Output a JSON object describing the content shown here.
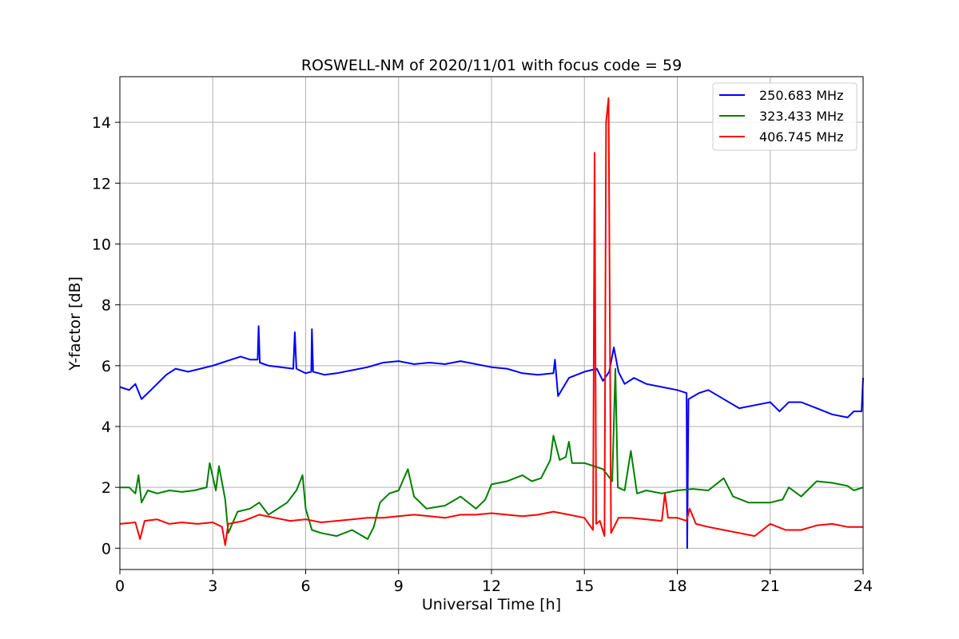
{
  "chart_data": {
    "type": "line",
    "title": "ROSWELL-NM of 2020/11/01 with focus code = 59",
    "xlabel": "Universal Time [h]",
    "ylabel": "Y-factor [dB]",
    "xlim": [
      0,
      24
    ],
    "ylim": [
      -0.7,
      15.5
    ],
    "xticks": [
      0,
      3,
      6,
      9,
      12,
      15,
      18,
      21,
      24
    ],
    "yticks": [
      0,
      2,
      4,
      6,
      8,
      10,
      12,
      14
    ],
    "grid": true,
    "legend_position": "top-right",
    "series": [
      {
        "name": "250.683 MHz",
        "color": "#0000ff",
        "points": [
          [
            0,
            5.3
          ],
          [
            0.3,
            5.2
          ],
          [
            0.5,
            5.4
          ],
          [
            0.7,
            4.9
          ],
          [
            0.9,
            5.1
          ],
          [
            1.0,
            5.2
          ],
          [
            1.3,
            5.5
          ],
          [
            1.5,
            5.7
          ],
          [
            1.8,
            5.9
          ],
          [
            2.2,
            5.8
          ],
          [
            2.6,
            5.9
          ],
          [
            3.0,
            6.0
          ],
          [
            3.3,
            6.1
          ],
          [
            3.6,
            6.2
          ],
          [
            3.9,
            6.3
          ],
          [
            4.2,
            6.2
          ],
          [
            4.45,
            6.2
          ],
          [
            4.48,
            7.3
          ],
          [
            4.52,
            6.1
          ],
          [
            4.8,
            6.0
          ],
          [
            5.2,
            5.95
          ],
          [
            5.6,
            5.9
          ],
          [
            5.65,
            7.1
          ],
          [
            5.7,
            5.9
          ],
          [
            6.0,
            5.75
          ],
          [
            6.18,
            5.8
          ],
          [
            6.2,
            7.2
          ],
          [
            6.24,
            5.8
          ],
          [
            6.6,
            5.7
          ],
          [
            7.0,
            5.75
          ],
          [
            7.5,
            5.85
          ],
          [
            8.0,
            5.95
          ],
          [
            8.5,
            6.1
          ],
          [
            9.0,
            6.15
          ],
          [
            9.5,
            6.05
          ],
          [
            10.0,
            6.1
          ],
          [
            10.5,
            6.05
          ],
          [
            11.0,
            6.15
          ],
          [
            11.5,
            6.05
          ],
          [
            12.0,
            5.95
          ],
          [
            12.5,
            5.9
          ],
          [
            13.0,
            5.75
          ],
          [
            13.5,
            5.7
          ],
          [
            14.0,
            5.75
          ],
          [
            14.05,
            6.2
          ],
          [
            14.15,
            5.0
          ],
          [
            14.5,
            5.6
          ],
          [
            15.0,
            5.8
          ],
          [
            15.4,
            5.9
          ],
          [
            15.6,
            5.5
          ],
          [
            15.8,
            5.8
          ],
          [
            15.95,
            6.6
          ],
          [
            16.1,
            5.8
          ],
          [
            16.3,
            5.4
          ],
          [
            16.6,
            5.6
          ],
          [
            17.0,
            5.4
          ],
          [
            17.5,
            5.3
          ],
          [
            18.0,
            5.2
          ],
          [
            18.3,
            5.1
          ],
          [
            18.32,
            0.0
          ],
          [
            18.36,
            4.9
          ],
          [
            18.7,
            5.1
          ],
          [
            19.0,
            5.2
          ],
          [
            19.5,
            4.9
          ],
          [
            20.0,
            4.6
          ],
          [
            20.5,
            4.7
          ],
          [
            21.0,
            4.8
          ],
          [
            21.3,
            4.5
          ],
          [
            21.6,
            4.8
          ],
          [
            22.0,
            4.8
          ],
          [
            22.5,
            4.6
          ],
          [
            23.0,
            4.4
          ],
          [
            23.5,
            4.3
          ],
          [
            23.7,
            4.5
          ],
          [
            23.95,
            4.5
          ],
          [
            24.0,
            5.6
          ]
        ]
      },
      {
        "name": "323.433 MHz",
        "color": "#008000",
        "points": [
          [
            0,
            2.0
          ],
          [
            0.3,
            2.0
          ],
          [
            0.5,
            1.8
          ],
          [
            0.6,
            2.4
          ],
          [
            0.7,
            1.5
          ],
          [
            0.9,
            1.9
          ],
          [
            1.2,
            1.8
          ],
          [
            1.6,
            1.9
          ],
          [
            2.0,
            1.85
          ],
          [
            2.4,
            1.9
          ],
          [
            2.8,
            2.0
          ],
          [
            2.9,
            2.8
          ],
          [
            3.1,
            1.9
          ],
          [
            3.2,
            2.7
          ],
          [
            3.4,
            1.6
          ],
          [
            3.5,
            0.5
          ],
          [
            3.8,
            1.2
          ],
          [
            4.2,
            1.3
          ],
          [
            4.5,
            1.5
          ],
          [
            4.8,
            1.1
          ],
          [
            5.1,
            1.3
          ],
          [
            5.4,
            1.5
          ],
          [
            5.7,
            1.9
          ],
          [
            5.9,
            2.4
          ],
          [
            6.0,
            1.3
          ],
          [
            6.2,
            0.6
          ],
          [
            6.5,
            0.5
          ],
          [
            7.0,
            0.4
          ],
          [
            7.5,
            0.6
          ],
          [
            8.0,
            0.3
          ],
          [
            8.2,
            0.7
          ],
          [
            8.4,
            1.5
          ],
          [
            8.7,
            1.8
          ],
          [
            9.0,
            1.9
          ],
          [
            9.3,
            2.6
          ],
          [
            9.5,
            1.7
          ],
          [
            9.9,
            1.3
          ],
          [
            10.5,
            1.4
          ],
          [
            11.0,
            1.7
          ],
          [
            11.5,
            1.3
          ],
          [
            11.8,
            1.6
          ],
          [
            12.0,
            2.1
          ],
          [
            12.5,
            2.2
          ],
          [
            13.0,
            2.4
          ],
          [
            13.3,
            2.2
          ],
          [
            13.6,
            2.3
          ],
          [
            13.9,
            2.9
          ],
          [
            14.0,
            3.7
          ],
          [
            14.2,
            2.9
          ],
          [
            14.4,
            3.0
          ],
          [
            14.5,
            3.5
          ],
          [
            14.6,
            2.8
          ],
          [
            15.0,
            2.8
          ],
          [
            15.3,
            2.7
          ],
          [
            15.6,
            2.6
          ],
          [
            15.9,
            2.2
          ],
          [
            16.0,
            5.9
          ],
          [
            16.08,
            2.0
          ],
          [
            16.3,
            1.9
          ],
          [
            16.5,
            3.2
          ],
          [
            16.7,
            1.8
          ],
          [
            17.0,
            1.9
          ],
          [
            17.5,
            1.8
          ],
          [
            18.0,
            1.9
          ],
          [
            18.5,
            1.95
          ],
          [
            19.0,
            1.9
          ],
          [
            19.5,
            2.3
          ],
          [
            19.8,
            1.7
          ],
          [
            20.3,
            1.5
          ],
          [
            21.0,
            1.5
          ],
          [
            21.4,
            1.6
          ],
          [
            21.6,
            2.0
          ],
          [
            22.0,
            1.7
          ],
          [
            22.5,
            2.2
          ],
          [
            23.0,
            2.15
          ],
          [
            23.5,
            2.05
          ],
          [
            23.7,
            1.9
          ],
          [
            24.0,
            2.0
          ]
        ]
      },
      {
        "name": "406.745 MHz",
        "color": "#ff0000",
        "points": [
          [
            0,
            0.8
          ],
          [
            0.5,
            0.85
          ],
          [
            0.65,
            0.3
          ],
          [
            0.8,
            0.9
          ],
          [
            1.2,
            0.95
          ],
          [
            1.6,
            0.8
          ],
          [
            2.0,
            0.85
          ],
          [
            2.5,
            0.8
          ],
          [
            3.0,
            0.85
          ],
          [
            3.3,
            0.7
          ],
          [
            3.4,
            0.1
          ],
          [
            3.5,
            0.8
          ],
          [
            4.0,
            0.9
          ],
          [
            4.5,
            1.1
          ],
          [
            5.0,
            1.0
          ],
          [
            5.5,
            0.9
          ],
          [
            6.0,
            0.95
          ],
          [
            6.5,
            0.85
          ],
          [
            7.0,
            0.9
          ],
          [
            7.5,
            0.95
          ],
          [
            8.0,
            1.0
          ],
          [
            8.5,
            1.0
          ],
          [
            9.0,
            1.05
          ],
          [
            9.5,
            1.1
          ],
          [
            10.0,
            1.05
          ],
          [
            10.5,
            1.0
          ],
          [
            11.0,
            1.1
          ],
          [
            11.5,
            1.1
          ],
          [
            12.0,
            1.15
          ],
          [
            12.5,
            1.1
          ],
          [
            13.0,
            1.05
          ],
          [
            13.5,
            1.1
          ],
          [
            14.0,
            1.2
          ],
          [
            14.5,
            1.1
          ],
          [
            15.0,
            1.0
          ],
          [
            15.28,
            0.6
          ],
          [
            15.33,
            13.0
          ],
          [
            15.38,
            0.8
          ],
          [
            15.5,
            0.9
          ],
          [
            15.65,
            0.4
          ],
          [
            15.7,
            14.0
          ],
          [
            15.78,
            14.8
          ],
          [
            15.86,
            0.5
          ],
          [
            16.1,
            1.0
          ],
          [
            16.5,
            1.0
          ],
          [
            17.0,
            0.95
          ],
          [
            17.5,
            0.9
          ],
          [
            17.6,
            1.8
          ],
          [
            17.7,
            1.0
          ],
          [
            18.0,
            1.0
          ],
          [
            18.3,
            0.9
          ],
          [
            18.4,
            1.3
          ],
          [
            18.6,
            0.8
          ],
          [
            19.0,
            0.7
          ],
          [
            19.5,
            0.6
          ],
          [
            20.0,
            0.5
          ],
          [
            20.5,
            0.4
          ],
          [
            21.0,
            0.8
          ],
          [
            21.5,
            0.6
          ],
          [
            22.0,
            0.6
          ],
          [
            22.5,
            0.75
          ],
          [
            23.0,
            0.8
          ],
          [
            23.5,
            0.7
          ],
          [
            24.0,
            0.7
          ]
        ]
      }
    ]
  }
}
